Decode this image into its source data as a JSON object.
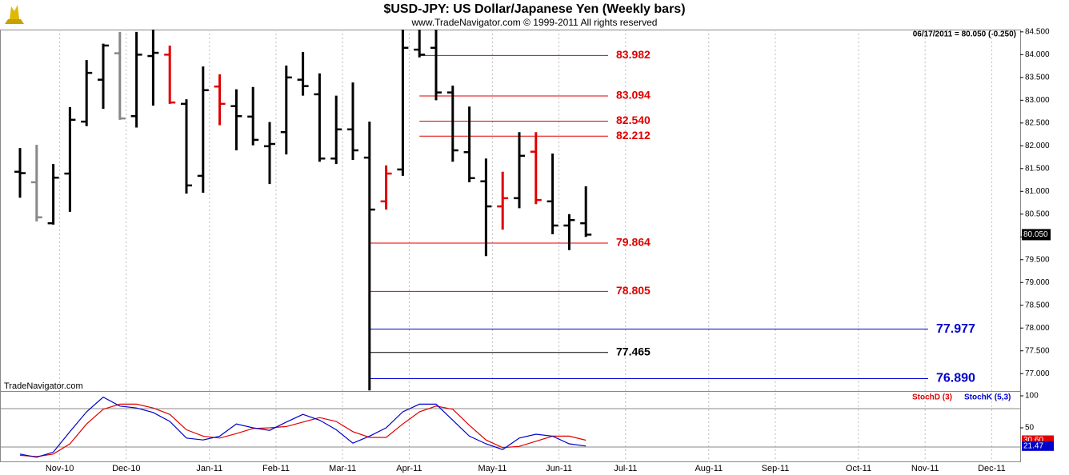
{
  "header": {
    "title": "$USD-JPY:  US Dollar/Japanese Yen  (Weekly bars)",
    "copyright": "www.TradeNavigator.com © 1999-2011 All rights reserved",
    "quote": "06/17/2011 = 80.050 (-0.250)",
    "watermark": "TradeNavigator.com"
  },
  "chart_data": {
    "type": "ohlc",
    "categories": [
      null,
      null,
      "Nov-10",
      null,
      null,
      null,
      "Dec-10",
      null,
      null,
      null,
      null,
      "Jan-11",
      null,
      null,
      null,
      "Feb-11",
      null,
      null,
      null,
      "Mar-11",
      null,
      null,
      null,
      "Apr-11",
      null,
      null,
      null,
      null,
      "May-11",
      null,
      null,
      null,
      "Jun-11",
      null,
      null,
      null,
      "Jul-11",
      null,
      null,
      null,
      null,
      "Aug-11",
      null,
      null,
      null,
      "Sep-11",
      null,
      null,
      null,
      null,
      "Oct-11",
      null,
      null,
      null,
      "Nov-11",
      null,
      null,
      null,
      "Dec-11",
      null,
      null
    ],
    "open": [
      81.43,
      81.2,
      80.3,
      81.39,
      82.53,
      83.45,
      84.03,
      82.65,
      83.97,
      84.0,
      82.92,
      81.34,
      83.3,
      82.87,
      82.64,
      81.99,
      82.3,
      83.45,
      83.13,
      81.72,
      82.36,
      81.74,
      80.78,
      81.48,
      84.11,
      84.15,
      83.17,
      81.86,
      81.22,
      80.67,
      80.85,
      81.87,
      80.78,
      80.25,
      80.3,
      null,
      null,
      null,
      null,
      null,
      null,
      null,
      null,
      null,
      null,
      null,
      null,
      null,
      null,
      null,
      null,
      null,
      null,
      null,
      null,
      null,
      null,
      null,
      null,
      null,
      null
    ],
    "high": [
      81.95,
      82.02,
      81.6,
      82.85,
      83.88,
      84.24,
      84.5,
      84.5,
      84.55,
      84.2,
      83.02,
      83.74,
      83.57,
      83.24,
      83.29,
      82.52,
      83.76,
      84.06,
      83.59,
      83.1,
      83.39,
      82.53,
      81.57,
      84.55,
      84.55,
      84.55,
      83.32,
      82.86,
      81.72,
      81.43,
      82.3,
      82.3,
      81.83,
      80.5,
      81.11,
      null,
      null,
      null,
      null,
      null,
      null,
      null,
      null,
      null,
      null,
      null,
      null,
      null,
      null,
      null,
      null,
      null,
      null,
      null,
      null,
      null,
      null,
      null,
      null,
      null,
      null
    ],
    "low": [
      80.86,
      80.34,
      80.27,
      80.55,
      82.43,
      82.81,
      82.57,
      82.4,
      82.88,
      82.92,
      80.95,
      80.97,
      82.45,
      81.9,
      82.01,
      81.16,
      81.81,
      83.1,
      81.65,
      81.6,
      81.69,
      76.63,
      80.6,
      81.34,
      83.94,
      83.0,
      81.65,
      81.2,
      79.58,
      80.16,
      80.63,
      80.72,
      80.06,
      79.71,
      80.0,
      null,
      null,
      null,
      null,
      null,
      null,
      null,
      null,
      null,
      null,
      null,
      null,
      null,
      null,
      null,
      null,
      null,
      null,
      null,
      null,
      null,
      null,
      null,
      null,
      null,
      null
    ],
    "close": [
      81.4,
      80.43,
      81.3,
      82.57,
      83.6,
      84.2,
      82.6,
      84.0,
      84.04,
      82.95,
      81.13,
      83.22,
      82.92,
      82.65,
      82.13,
      82.04,
      83.5,
      83.31,
      81.72,
      82.36,
      81.9,
      80.6,
      81.39,
      84.15,
      84.0,
      83.17,
      81.9,
      81.29,
      80.67,
      80.85,
      81.78,
      80.81,
      80.25,
      80.37,
      80.05,
      null,
      null,
      null,
      null,
      null,
      null,
      null,
      null,
      null,
      null,
      null,
      null,
      null,
      null,
      null,
      null,
      null,
      null,
      null,
      null,
      null,
      null,
      null,
      null,
      null,
      null
    ],
    "bar_colors": [
      "#000000",
      "#888888",
      "#000000",
      "#000000",
      "#000000",
      "#000000",
      "#888888",
      "#000000",
      "#000000",
      "#e00000",
      "#000000",
      "#000000",
      "#e00000",
      "#000000",
      "#000000",
      "#000000",
      "#000000",
      "#000000",
      "#000000",
      "#000000",
      "#000000",
      "#000000",
      "#e00000",
      "#000000",
      "#000000",
      "#000000",
      "#000000",
      "#000000",
      "#000000",
      "#e00000",
      "#000000",
      "#e00000",
      "#000000",
      "#000000",
      "#000000",
      null,
      null,
      null,
      null,
      null,
      null,
      null,
      null,
      null,
      null,
      null,
      null,
      null,
      null,
      null,
      null,
      null,
      null,
      null,
      null,
      null,
      null,
      null,
      null,
      null,
      null
    ],
    "ylim": [
      76.6,
      84.55
    ],
    "yticks": [
      {
        "value": 84.5,
        "label": "84.500"
      },
      {
        "value": 84,
        "label": "84.000"
      },
      {
        "value": 83.5,
        "label": "83.500"
      },
      {
        "value": 83,
        "label": "83.000"
      },
      {
        "value": 82.5,
        "label": "82.500"
      },
      {
        "value": 82,
        "label": "82.000"
      },
      {
        "value": 81.5,
        "label": "81.500"
      },
      {
        "value": 81,
        "label": "81.000"
      },
      {
        "value": 80.5,
        "label": "80.500"
      },
      {
        "value": 80,
        "label": "80.000"
      },
      {
        "value": 79.5,
        "label": "79.500"
      },
      {
        "value": 79,
        "label": "79.000"
      },
      {
        "value": 78.5,
        "label": "78.500"
      },
      {
        "value": 78,
        "label": "78.000"
      },
      {
        "value": 77.5,
        "label": "77.500"
      },
      {
        "value": 77,
        "label": "77.000"
      }
    ],
    "levels": [
      {
        "value": 83.982,
        "label": "83.982",
        "color": "#e00000"
      },
      {
        "value": 83.094,
        "label": "83.094",
        "color": "#e00000"
      },
      {
        "value": 82.54,
        "label": "82.540",
        "color": "#e00000"
      },
      {
        "value": 82.212,
        "label": "82.212",
        "color": "#e00000"
      },
      {
        "value": 79.864,
        "label": "79.864",
        "color": "#e00000"
      },
      {
        "value": 78.805,
        "label": "78.805",
        "color": "#e00000"
      },
      {
        "value": 77.977,
        "label": "77.977",
        "color": "#0000cc"
      },
      {
        "value": 77.465,
        "label": "77.465",
        "color": "#000000"
      },
      {
        "value": 76.89,
        "label": "76.890",
        "color": "#0000cc"
      }
    ],
    "last_price": {
      "value": 80.05,
      "label": "80.050"
    },
    "indicator": {
      "type": "line",
      "ylim": [
        -3.75,
        106.25
      ],
      "yticks": [
        100,
        50
      ],
      "reference_lines": [
        80,
        20
      ],
      "series": [
        {
          "name": "StochD (3)",
          "color": "#e00000",
          "last_label": "30.60",
          "values": [
            7,
            5,
            9,
            25,
            56,
            79,
            87,
            87,
            81,
            71,
            47,
            37,
            34,
            41,
            49,
            50,
            52,
            59,
            66,
            60,
            44,
            35,
            35,
            56,
            75,
            84,
            79,
            54,
            31,
            19,
            21,
            29,
            37,
            37,
            30.6,
            null,
            null,
            null,
            null,
            null,
            null,
            null,
            null,
            null,
            null,
            null,
            null,
            null,
            null,
            null,
            null,
            null,
            null,
            null,
            null,
            null,
            null,
            null,
            null,
            null,
            null
          ]
        },
        {
          "name": "StochK (5,3)",
          "color": "#0000cc",
          "last_label": "21.47",
          "values": [
            9,
            4,
            12,
            44,
            75,
            98,
            84,
            81,
            74,
            60,
            34,
            31,
            37,
            56,
            50,
            46,
            59,
            71,
            62,
            47,
            26,
            37,
            50,
            75,
            87,
            87,
            62,
            37,
            25,
            16,
            34,
            40,
            37,
            25,
            21.47,
            null,
            null,
            null,
            null,
            null,
            null,
            null,
            null,
            null,
            null,
            null,
            null,
            null,
            null,
            null,
            null,
            null,
            null,
            null,
            null,
            null,
            null,
            null,
            null,
            null,
            null
          ]
        }
      ]
    }
  }
}
